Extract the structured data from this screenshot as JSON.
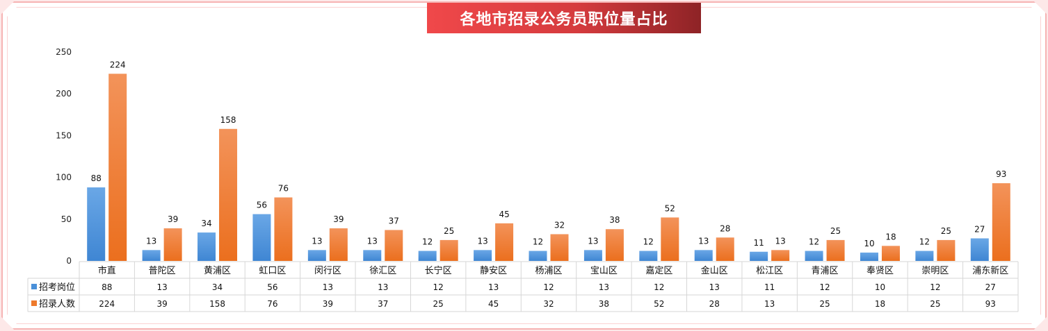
{
  "chart_data": {
    "type": "bar",
    "title": "各地市招录公务员职位量占比",
    "categories": [
      "市直",
      "普陀区",
      "黄浦区",
      "虹口区",
      "闵行区",
      "徐汇区",
      "长宁区",
      "静安区",
      "杨浦区",
      "宝山区",
      "嘉定区",
      "金山区",
      "松江区",
      "青浦区",
      "奉贤区",
      "崇明区",
      "浦东新区"
    ],
    "series": [
      {
        "name": "招考岗位",
        "color": "#4a90d9",
        "values": [
          88,
          13,
          34,
          56,
          13,
          13,
          12,
          13,
          12,
          13,
          12,
          13,
          11,
          12,
          10,
          12,
          27
        ]
      },
      {
        "name": "招录人数",
        "color": "#ee7a2c",
        "values": [
          224,
          39,
          158,
          76,
          39,
          37,
          25,
          45,
          32,
          38,
          52,
          28,
          13,
          25,
          18,
          25,
          93
        ]
      }
    ],
    "ylim": [
      0,
      250
    ],
    "yticks": [
      0,
      50,
      100,
      150,
      200,
      250
    ],
    "data_labels": true,
    "data_table": true,
    "grid": false
  }
}
